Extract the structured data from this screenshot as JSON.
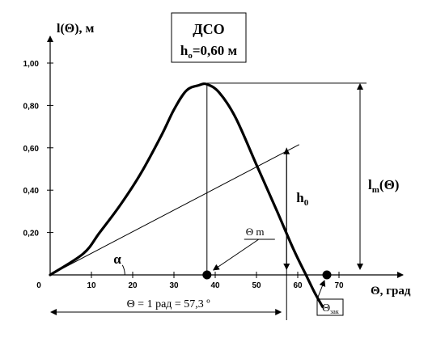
{
  "chart_data": {
    "type": "line",
    "title_box": {
      "line1": "ДСО",
      "line2_main": "h",
      "line2_sub": "o",
      "line2_rest": "=0,60 м"
    },
    "ylabel": "l(Θ), м",
    "xlabel": "Θ, град",
    "x_ticks": [
      "0",
      "10",
      "20",
      "30",
      "40",
      "50",
      "60",
      "70"
    ],
    "y_ticks": [
      "0,20",
      "0,40",
      "0,60",
      "0,80",
      "1,00"
    ],
    "xlim": [
      0,
      70
    ],
    "ylim": [
      0,
      1.0
    ],
    "series": [
      {
        "x": [
          0,
          8,
          12,
          17,
          22,
          27,
          30,
          33,
          36,
          38,
          41,
          45,
          50,
          55,
          59,
          62,
          64,
          66
        ],
        "y": [
          0,
          0.1,
          0.2,
          0.33,
          0.48,
          0.66,
          0.78,
          0.87,
          0.895,
          0.9,
          0.86,
          0.74,
          0.52,
          0.3,
          0.12,
          0.0,
          -0.08,
          -0.15
        ]
      }
    ],
    "tangent_line": {
      "x": [
        0,
        58
      ],
      "y": [
        0,
        0.6
      ]
    },
    "annotations": {
      "alpha": "α",
      "h0_main": "h",
      "h0_sub": "0",
      "theta_m": "Θ m",
      "lm_main": "l",
      "lm_sub": "m",
      "lm_rest": "(Θ)",
      "rad_label": "Θ = 1 рад = 57,3 º",
      "theta_zak": "Θ",
      "theta_zak_sub": "зак"
    },
    "theta_m_x": 38,
    "theta_zak_x": 62,
    "rad_x": 57.3,
    "h0_value": 0.6
  }
}
